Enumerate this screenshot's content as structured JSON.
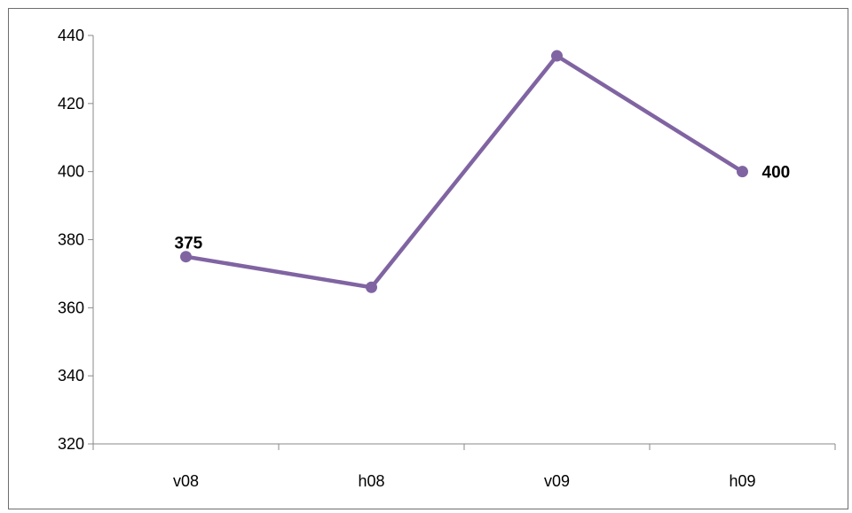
{
  "chart_data": {
    "type": "line",
    "categories": [
      "v08",
      "h08",
      "v09",
      "h09"
    ],
    "series": [
      {
        "values": [
          375,
          366,
          434,
          400
        ],
        "color": "#8064a2"
      }
    ],
    "data_labels": [
      {
        "index": 0,
        "text": "375"
      },
      {
        "index": 3,
        "text": "400"
      }
    ],
    "ylim": [
      320,
      440
    ],
    "yticks": [
      320,
      340,
      360,
      380,
      400,
      420,
      440
    ],
    "ytick_labels": [
      "320",
      "340",
      "360",
      "380",
      "400",
      "420",
      "440"
    ],
    "grid": false,
    "legend": "none",
    "title": "",
    "xlabel": "",
    "ylabel": ""
  }
}
